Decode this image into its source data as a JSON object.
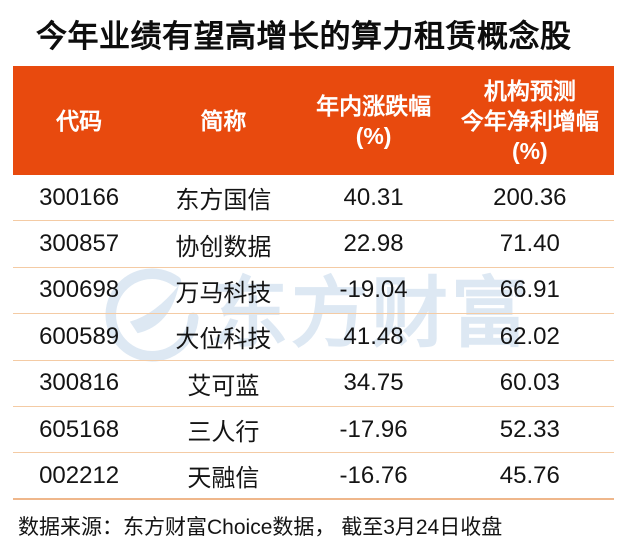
{
  "title": "今年业绩有望高增长的算力租赁概念股",
  "colors": {
    "header_bg": "#e84a0e",
    "header_text": "#ffffff",
    "row_divider": "#f4cba4",
    "bottom_divider": "#efb78b",
    "body_text": "#141414",
    "watermark": "#dde8f3"
  },
  "table": {
    "headers": [
      {
        "label": "代码",
        "lines": [
          "代码"
        ]
      },
      {
        "label": "简称",
        "lines": [
          "简称"
        ]
      },
      {
        "label": "年内涨跌幅(%)",
        "lines": [
          "年内涨跌幅",
          "(%)"
        ]
      },
      {
        "label": "机构预测今年净利增幅(%)",
        "lines": [
          "机构预测",
          "今年净利增幅",
          "(%)"
        ]
      }
    ],
    "rows": [
      [
        "300166",
        "东方国信",
        "40.31",
        "200.36"
      ],
      [
        "300857",
        "协创数据",
        "22.98",
        "71.40"
      ],
      [
        "300698",
        "万马科技",
        "-19.04",
        "66.91"
      ],
      [
        "600589",
        "大位科技",
        "41.48",
        "62.02"
      ],
      [
        "300816",
        "艾可蓝",
        "34.75",
        "60.03"
      ],
      [
        "605168",
        "三人行",
        "-17.96",
        "52.33"
      ],
      [
        "002212",
        "天融信",
        "-16.76",
        "45.76"
      ]
    ]
  },
  "watermark": {
    "text": "东方财富",
    "icon": "eastmoney-swoosh-logo"
  },
  "footer": {
    "text": "数据来源：东方财富Choice数据， 截至3月24日收盘"
  },
  "chart_data": {
    "type": "table",
    "title": "今年业绩有望高增长的算力租赁概念股",
    "columns": [
      "代码",
      "简称",
      "年内涨跌幅(%)",
      "机构预测今年净利增幅(%)"
    ],
    "rows": [
      {
        "code": "300166",
        "name": "东方国信",
        "ytd_change_pct": 40.31,
        "forecast_profit_growth_pct": 200.36
      },
      {
        "code": "300857",
        "name": "协创数据",
        "ytd_change_pct": 22.98,
        "forecast_profit_growth_pct": 71.4
      },
      {
        "code": "300698",
        "name": "万马科技",
        "ytd_change_pct": -19.04,
        "forecast_profit_growth_pct": 66.91
      },
      {
        "code": "600589",
        "name": "大位科技",
        "ytd_change_pct": 41.48,
        "forecast_profit_growth_pct": 62.02
      },
      {
        "code": "300816",
        "name": "艾可蓝",
        "ytd_change_pct": 34.75,
        "forecast_profit_growth_pct": 60.03
      },
      {
        "code": "605168",
        "name": "三人行",
        "ytd_change_pct": -17.96,
        "forecast_profit_growth_pct": 52.33
      },
      {
        "code": "002212",
        "name": "天融信",
        "ytd_change_pct": -16.76,
        "forecast_profit_growth_pct": 45.76
      }
    ],
    "source_note": "数据来源：东方财富Choice数据， 截至3月24日收盘"
  }
}
